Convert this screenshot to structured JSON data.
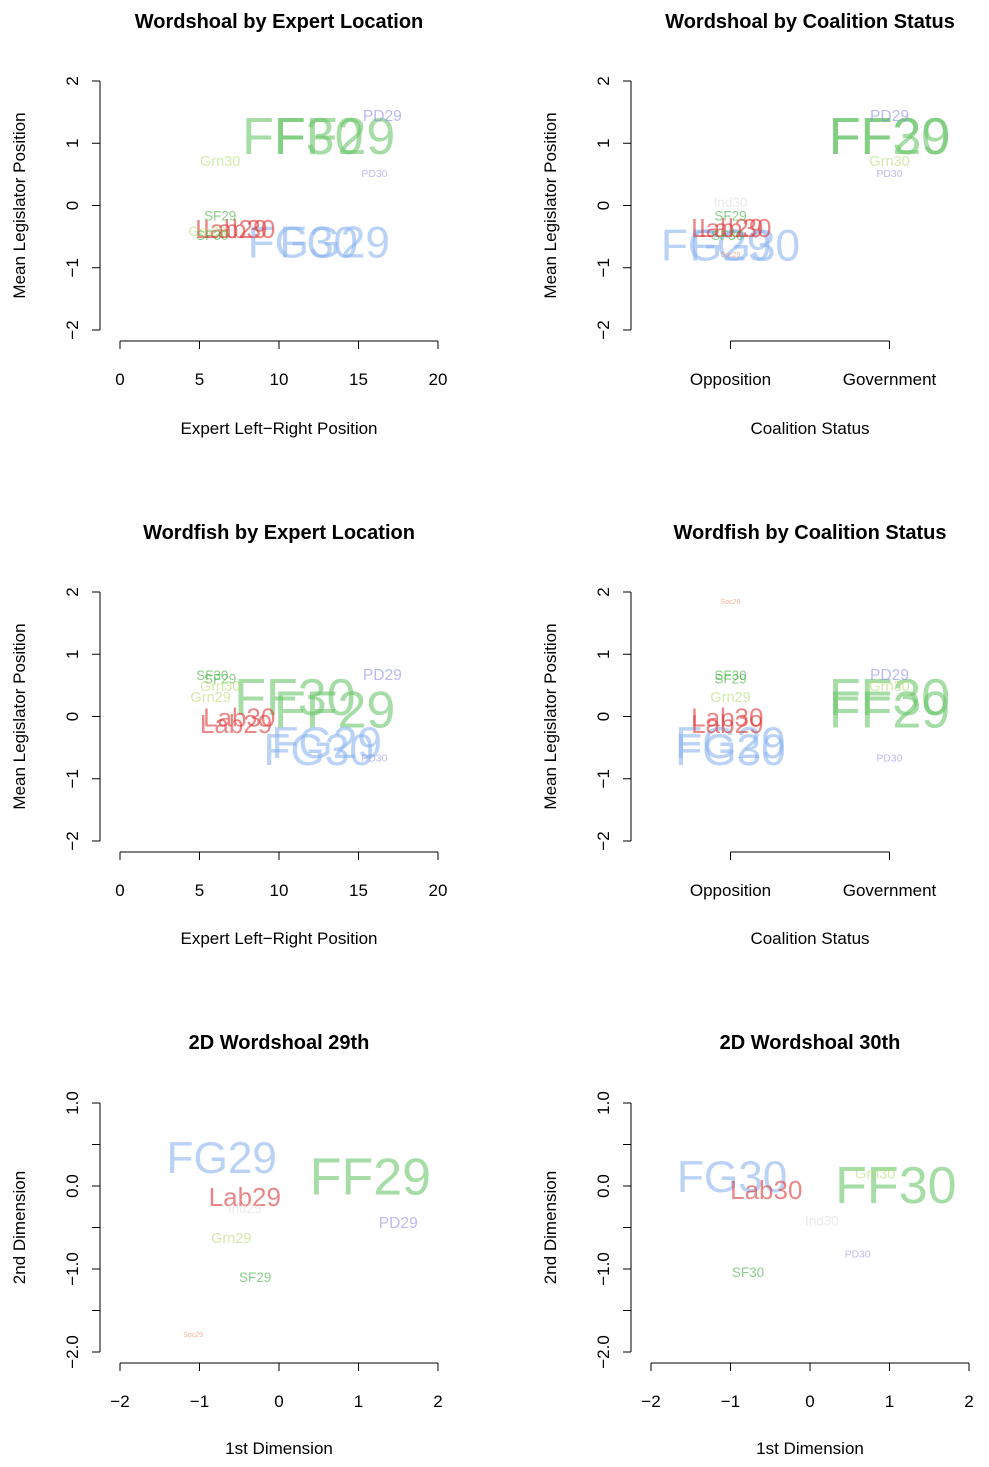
{
  "colors": {
    "FF": "#6ac46a",
    "FG": "#8ab4f0",
    "Lab": "#dd3535",
    "Grn": "#b4dc6e",
    "SF": "#3cae3c",
    "PD": "#8c8ce6",
    "Ind": "#dcdcdc",
    "Soc": "#f47c50"
  },
  "chart_data": [
    {
      "type": "scatter",
      "title": "Wordshoal by Expert Location",
      "xlabel": "Expert Left−Right Position",
      "ylabel": "Mean Legislator Position",
      "xlim": [
        0,
        20
      ],
      "ylim": [
        -2,
        2
      ],
      "xticks": [
        0,
        5,
        10,
        15,
        20
      ],
      "xtick_labels": [
        "0",
        "5",
        "10",
        "15",
        "20"
      ],
      "yticks": [
        -2,
        -1,
        0,
        1,
        2
      ],
      "ytick_labels": [
        "−2",
        "−1",
        "0",
        "1",
        "2"
      ],
      "points": [
        {
          "label": "FF29",
          "x": 13.5,
          "y": 1.1,
          "size": 1.0
        },
        {
          "label": "FF30",
          "x": 11.5,
          "y": 1.1,
          "size": 1.0
        },
        {
          "label": "FG29",
          "x": 13.5,
          "y": -0.6,
          "size": 0.85
        },
        {
          "label": "FG30",
          "x": 11.5,
          "y": -0.6,
          "size": 0.85
        },
        {
          "label": "Lab29",
          "x": 7.0,
          "y": -0.38,
          "size": 0.5
        },
        {
          "label": "Lab30",
          "x": 7.5,
          "y": -0.38,
          "size": 0.5
        },
        {
          "label": "PD29",
          "x": 16.5,
          "y": 1.43,
          "size": 0.3
        },
        {
          "label": "PD30",
          "x": 16.0,
          "y": 0.5,
          "size": 0.2
        },
        {
          "label": "Grn30",
          "x": 6.3,
          "y": 0.7,
          "size": 0.28
        },
        {
          "label": "Grn29",
          "x": 5.5,
          "y": -0.42,
          "size": 0.26
        },
        {
          "label": "SF29",
          "x": 6.3,
          "y": -0.17,
          "size": 0.26
        },
        {
          "label": "SF30",
          "x": 5.8,
          "y": -0.48,
          "size": 0.26
        }
      ]
    },
    {
      "type": "scatter",
      "title": "Wordshoal by Coalition Status",
      "xlabel": "Coalition Status",
      "ylabel": "Mean Legislator Position",
      "xlim": [
        -0.5,
        1.5
      ],
      "ylim": [
        -2,
        2
      ],
      "xticks": [
        0,
        1
      ],
      "xtick_labels": [
        "Opposition",
        "Government"
      ],
      "x_axis_span": [
        0,
        1
      ],
      "yticks": [
        -2,
        -1,
        0,
        1,
        2
      ],
      "ytick_labels": [
        "−2",
        "−1",
        "0",
        "1",
        "2"
      ],
      "points": [
        {
          "label": "FF29",
          "x": 1.0,
          "y": 1.1,
          "size": 1.0
        },
        {
          "label": "FF30",
          "x": 1.0,
          "y": 1.1,
          "size": 1.0
        },
        {
          "label": "FG29",
          "x": -0.09,
          "y": -0.65,
          "size": 0.85
        },
        {
          "label": "FG30",
          "x": 0.09,
          "y": -0.65,
          "size": 0.85
        },
        {
          "label": "Lab29",
          "x": -0.02,
          "y": -0.36,
          "size": 0.5
        },
        {
          "label": "Lab30",
          "x": 0.03,
          "y": -0.36,
          "size": 0.5
        },
        {
          "label": "PD29",
          "x": 1.0,
          "y": 1.43,
          "size": 0.3
        },
        {
          "label": "PD30",
          "x": 1.0,
          "y": 0.5,
          "size": 0.2
        },
        {
          "label": "Grn30",
          "x": 1.0,
          "y": 0.7,
          "size": 0.28
        },
        {
          "label": "Ind30",
          "x": 0.0,
          "y": 0.05,
          "size": 0.26
        },
        {
          "label": "SF29",
          "x": 0.0,
          "y": -0.17,
          "size": 0.26
        },
        {
          "label": "SF30",
          "x": -0.02,
          "y": -0.48,
          "size": 0.26
        },
        {
          "label": "Soc29",
          "x": 0.0,
          "y": -0.8,
          "size": 0.12
        }
      ]
    },
    {
      "type": "scatter",
      "title": "Wordfish by Expert Location",
      "xlabel": "Expert Left−Right Position",
      "ylabel": "Mean Legislator Position",
      "xlim": [
        0,
        20
      ],
      "ylim": [
        -2,
        2
      ],
      "xticks": [
        0,
        5,
        10,
        15,
        20
      ],
      "xtick_labels": [
        "0",
        "5",
        "10",
        "15",
        "20"
      ],
      "yticks": [
        -2,
        -1,
        0,
        1,
        2
      ],
      "ytick_labels": [
        "−2",
        "−1",
        "0",
        "1",
        "2"
      ],
      "points": [
        {
          "label": "FF30",
          "x": 11.0,
          "y": 0.3,
          "size": 1.0
        },
        {
          "label": "FF29",
          "x": 13.5,
          "y": 0.1,
          "size": 1.0
        },
        {
          "label": "FG29",
          "x": 13.0,
          "y": -0.43,
          "size": 0.85
        },
        {
          "label": "FG30",
          "x": 12.5,
          "y": -0.55,
          "size": 0.85
        },
        {
          "label": "Lab30",
          "x": 7.5,
          "y": -0.02,
          "size": 0.5
        },
        {
          "label": "Lab29",
          "x": 7.3,
          "y": -0.12,
          "size": 0.5
        },
        {
          "label": "PD29",
          "x": 16.5,
          "y": 0.66,
          "size": 0.3
        },
        {
          "label": "PD30",
          "x": 16.0,
          "y": -0.68,
          "size": 0.2
        },
        {
          "label": "SF30",
          "x": 5.8,
          "y": 0.66,
          "size": 0.26
        },
        {
          "label": "SF29",
          "x": 6.3,
          "y": 0.6,
          "size": 0.26
        },
        {
          "label": "Grn30",
          "x": 6.3,
          "y": 0.47,
          "size": 0.28
        },
        {
          "label": "Grn29",
          "x": 5.7,
          "y": 0.3,
          "size": 0.28
        }
      ]
    },
    {
      "type": "scatter",
      "title": "Wordfish by Coalition Status",
      "xlabel": "Coalition Status",
      "ylabel": "Mean Legislator Position",
      "xlim": [
        -0.5,
        1.5
      ],
      "ylim": [
        -2,
        2
      ],
      "xticks": [
        0,
        1
      ],
      "xtick_labels": [
        "Opposition",
        "Government"
      ],
      "x_axis_span": [
        0,
        1
      ],
      "yticks": [
        -2,
        -1,
        0,
        1,
        2
      ],
      "ytick_labels": [
        "−2",
        "−1",
        "0",
        "1",
        "2"
      ],
      "points": [
        {
          "label": "FF30",
          "x": 1.0,
          "y": 0.3,
          "size": 1.0
        },
        {
          "label": "FF29",
          "x": 1.0,
          "y": 0.1,
          "size": 1.0
        },
        {
          "label": "FG29",
          "x": 0.0,
          "y": -0.43,
          "size": 0.85
        },
        {
          "label": "FG30",
          "x": 0.0,
          "y": -0.55,
          "size": 0.85
        },
        {
          "label": "Lab30",
          "x": -0.02,
          "y": -0.02,
          "size": 0.5
        },
        {
          "label": "Lab29",
          "x": -0.02,
          "y": -0.12,
          "size": 0.5
        },
        {
          "label": "PD29",
          "x": 1.0,
          "y": 0.66,
          "size": 0.3
        },
        {
          "label": "PD30",
          "x": 1.0,
          "y": -0.68,
          "size": 0.2
        },
        {
          "label": "Grn30",
          "x": 1.0,
          "y": 0.47,
          "size": 0.28
        },
        {
          "label": "SF30",
          "x": 0.0,
          "y": 0.66,
          "size": 0.26
        },
        {
          "label": "SF29",
          "x": 0.0,
          "y": 0.6,
          "size": 0.26
        },
        {
          "label": "Grn29",
          "x": 0.0,
          "y": 0.3,
          "size": 0.28
        },
        {
          "label": "Soc29",
          "x": 0.0,
          "y": 1.83,
          "size": 0.12
        }
      ]
    },
    {
      "type": "scatter",
      "title": "2D Wordshoal 29th",
      "xlabel": "1st Dimension",
      "ylabel": "2nd Dimension",
      "xlim": [
        -2,
        2
      ],
      "ylim": [
        -2,
        1
      ],
      "xticks": [
        -2,
        -1,
        0,
        1,
        2
      ],
      "xtick_labels": [
        "−2",
        "−1",
        "0",
        "1",
        "2"
      ],
      "yticks": [
        -2,
        -1.5,
        -1,
        -0.5,
        0,
        0.5,
        1
      ],
      "ytick_labels": [
        "−2.0",
        "",
        "−1.0",
        "",
        "0.0",
        "",
        "1.0"
      ],
      "points": [
        {
          "label": "FF29",
          "x": 1.15,
          "y": 0.1,
          "size": 1.0
        },
        {
          "label": "FG29",
          "x": -0.72,
          "y": 0.33,
          "size": 0.85
        },
        {
          "label": "Lab29",
          "x": -0.43,
          "y": -0.13,
          "size": 0.5
        },
        {
          "label": "Ind29",
          "x": -0.43,
          "y": -0.27,
          "size": 0.26
        },
        {
          "label": "PD29",
          "x": 1.5,
          "y": -0.45,
          "size": 0.3
        },
        {
          "label": "Grn29",
          "x": -0.6,
          "y": -0.64,
          "size": 0.28
        },
        {
          "label": "SF29",
          "x": -0.3,
          "y": -1.1,
          "size": 0.26
        },
        {
          "label": "Soc29",
          "x": -1.08,
          "y": -1.8,
          "size": 0.12
        }
      ]
    },
    {
      "type": "scatter",
      "title": "2D Wordshoal 30th",
      "xlabel": "1st Dimension",
      "ylabel": "2nd Dimension",
      "xlim": [
        -2,
        2
      ],
      "ylim": [
        -2,
        1
      ],
      "xticks": [
        -2,
        -1,
        0,
        1,
        2
      ],
      "xtick_labels": [
        "−2",
        "−1",
        "0",
        "1",
        "2"
      ],
      "yticks": [
        -2,
        -1.5,
        -1,
        -0.5,
        0,
        0.5,
        1
      ],
      "ytick_labels": [
        "−2.0",
        "",
        "−1.0",
        "",
        "0.0",
        "",
        "1.0"
      ],
      "points": [
        {
          "label": "FF30",
          "x": 1.08,
          "y": -0.0,
          "size": 1.0
        },
        {
          "label": "FG30",
          "x": -0.98,
          "y": 0.1,
          "size": 0.85
        },
        {
          "label": "Lab30",
          "x": -0.55,
          "y": -0.05,
          "size": 0.5
        },
        {
          "label": "Grn30",
          "x": 0.82,
          "y": 0.14,
          "size": 0.28
        },
        {
          "label": "Ind30",
          "x": 0.15,
          "y": -0.42,
          "size": 0.26
        },
        {
          "label": "PD30",
          "x": 0.6,
          "y": -0.83,
          "size": 0.2
        },
        {
          "label": "SF30",
          "x": -0.78,
          "y": -1.04,
          "size": 0.26
        }
      ]
    }
  ]
}
